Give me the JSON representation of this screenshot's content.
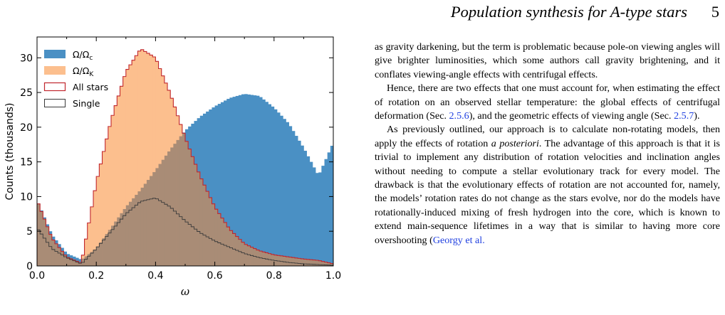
{
  "header": {
    "running_title": "Population synthesis for A-type stars",
    "page_number": "5"
  },
  "figure": {
    "legend": {
      "omega_c": "Ω/Ω",
      "omega_c_sub": "c",
      "omega_k": "Ω/Ω",
      "omega_k_sub": "K",
      "all_stars": "All stars",
      "single": "Single"
    },
    "colors": {
      "omega_c": "#4a90c4",
      "omega_k": "#fcbf8e",
      "overlap": "#a98c76",
      "all_stars_edge": "#c1272d",
      "single_edge": "#3a3a3a"
    }
  },
  "chart_data": {
    "type": "histogram",
    "xlabel": "ω",
    "ylabel": "Counts (thousands)",
    "xlim": [
      0.0,
      1.0
    ],
    "ylim": [
      0,
      33
    ],
    "xticks": [
      "0.0",
      "0.2",
      "0.4",
      "0.6",
      "0.8",
      "1.0"
    ],
    "yticks": [
      "0",
      "5",
      "10",
      "15",
      "20",
      "25",
      "30"
    ],
    "x": [
      0.0,
      0.05,
      0.1,
      0.15,
      0.2,
      0.25,
      0.3,
      0.35,
      0.4,
      0.45,
      0.5,
      0.55,
      0.6,
      0.65,
      0.7,
      0.75,
      0.8,
      0.85,
      0.9,
      0.95,
      1.0
    ],
    "legend_position": "top-left",
    "series": [
      {
        "name": "Ω/Ωc",
        "style": "filled",
        "values": [
          9.5,
          4.5,
          1.8,
          0.9,
          2.5,
          5.5,
          8.5,
          11.0,
          13.8,
          16.8,
          19.5,
          21.5,
          23.0,
          24.2,
          24.8,
          24.5,
          22.8,
          20.5,
          17.0,
          13.0,
          17.8
        ]
      },
      {
        "name": "Ω/ΩK",
        "style": "filled",
        "values": [
          9.5,
          4.0,
          1.3,
          0.4,
          12.0,
          21.0,
          28.0,
          31.3,
          30.0,
          24.8,
          18.5,
          13.0,
          8.5,
          5.3,
          3.2,
          2.2,
          1.6,
          1.3,
          1.0,
          0.8,
          0.3
        ]
      },
      {
        "name": "All stars",
        "style": "step",
        "values": [
          9.5,
          4.0,
          1.3,
          0.4,
          12.0,
          21.0,
          28.0,
          31.3,
          30.0,
          24.8,
          18.5,
          13.0,
          8.5,
          5.3,
          3.2,
          2.2,
          1.6,
          1.3,
          1.0,
          0.8,
          0.3
        ]
      },
      {
        "name": "Single",
        "style": "step",
        "values": [
          5.5,
          2.5,
          1.2,
          0.3,
          2.5,
          5.0,
          7.5,
          9.3,
          9.8,
          8.5,
          6.5,
          4.8,
          3.6,
          2.7,
          1.8,
          1.2,
          0.8,
          0.5,
          0.3,
          0.2,
          0.1
        ]
      }
    ]
  },
  "text": {
    "p1": "as gravity darkening, but the term is problematic because pole-on viewing angles will give brighter luminosities, which some authors call gravity brightening, and it conflates viewing-angle effects with centrifugal effects.",
    "p2_a": "Hence, there are two effects that one must account for, when estimating the effect of rotation on an observed stellar temperature: the global effects of centrifugal deformation (Sec.",
    "p2_ref1": "2.5.6",
    "p2_b": "), and the geometric effects of viewing angle (Sec.",
    "p2_ref2": "2.5.7",
    "p2_c": ").",
    "p3_a": "As previously outlined, our approach is to calculate non-rotating models, then apply the effects of rotation",
    "p3_em": "a posteriori",
    "p3_b": ". The advantage of this approach is that it is trivial to implement any distribution of rotation velocities and inclination angles without needing to compute a stellar evolutionary track for every model. The drawback is that the evolutionary effects of rotation are not accounted for, namely, the models’ rotation rates do not change as the stars evolve, nor do the models have rotationally-induced mixing of fresh hydrogen into the core, which is known to extend main-sequence lifetimes in a way that is similar to having more core overshooting (",
    "p3_ref": "Georgy et al."
  }
}
